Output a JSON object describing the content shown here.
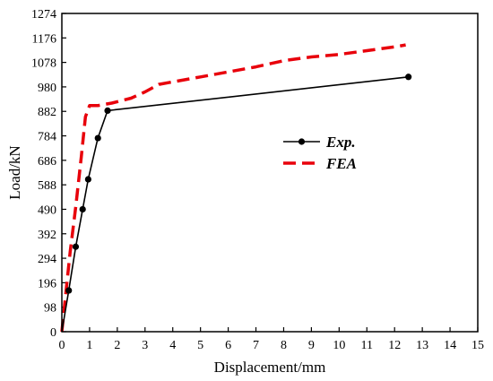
{
  "chart_data": {
    "type": "line",
    "title": "",
    "xlabel": "Displacement/mm",
    "ylabel": "Load/kN",
    "xlim": [
      0,
      15
    ],
    "ylim": [
      0,
      1274
    ],
    "xticks": [
      0,
      1,
      2,
      3,
      4,
      5,
      6,
      7,
      8,
      9,
      10,
      11,
      12,
      13,
      14,
      15
    ],
    "yticks": [
      0,
      98,
      196,
      294,
      392,
      490,
      588,
      686,
      784,
      882,
      980,
      1078,
      1176,
      1274
    ],
    "grid": false,
    "legend": "center-right",
    "series": [
      {
        "name": "Exp.",
        "color": "#000000",
        "style": "solid-with-dots",
        "x": [
          0,
          0.25,
          0.5,
          0.75,
          0.95,
          1.3,
          1.65,
          12.5
        ],
        "y": [
          0,
          165,
          340,
          490,
          610,
          775,
          885,
          1020
        ]
      },
      {
        "name": "FEA",
        "color": "#e8000b",
        "style": "dashed",
        "x": [
          0,
          0.15,
          0.3,
          0.5,
          0.7,
          0.85,
          1.0,
          1.3,
          1.8,
          2.5,
          3.0,
          3.5,
          5.0,
          7.0,
          8.0,
          9.0,
          10.0,
          11.0,
          12.0,
          12.4
        ],
        "y": [
          0,
          160,
          320,
          500,
          700,
          860,
          905,
          905,
          915,
          935,
          960,
          990,
          1020,
          1060,
          1085,
          1100,
          1110,
          1125,
          1140,
          1148
        ]
      }
    ]
  }
}
